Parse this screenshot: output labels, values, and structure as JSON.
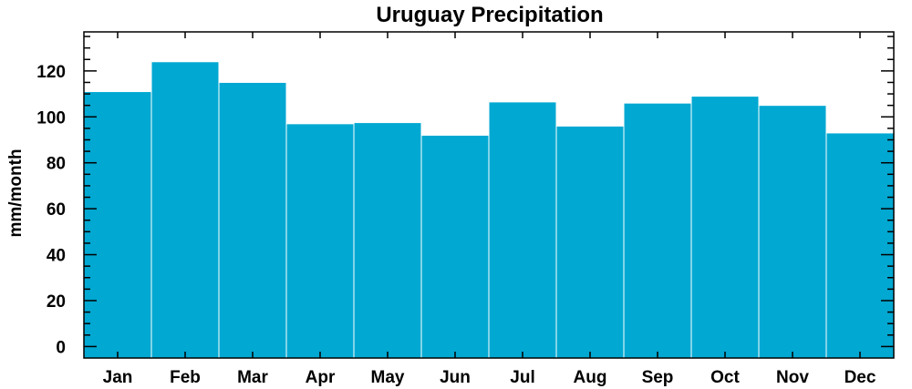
{
  "chart_data": {
    "type": "bar",
    "title": "Uruguay Precipitation",
    "xlabel": "",
    "ylabel": "mm/month",
    "categories": [
      "Jan",
      "Feb",
      "Mar",
      "Apr",
      "May",
      "Jun",
      "Jul",
      "Aug",
      "Sep",
      "Oct",
      "Nov",
      "Dec"
    ],
    "values": [
      111,
      124,
      115,
      97,
      97.5,
      92,
      106.5,
      96,
      106,
      109,
      105,
      93
    ],
    "ylim": [
      -5,
      137
    ],
    "yticks": [
      0,
      20,
      40,
      60,
      80,
      100,
      120
    ],
    "grid": false,
    "bar_color": "#00a8d2",
    "bar_edge_color": "#ffffff"
  }
}
